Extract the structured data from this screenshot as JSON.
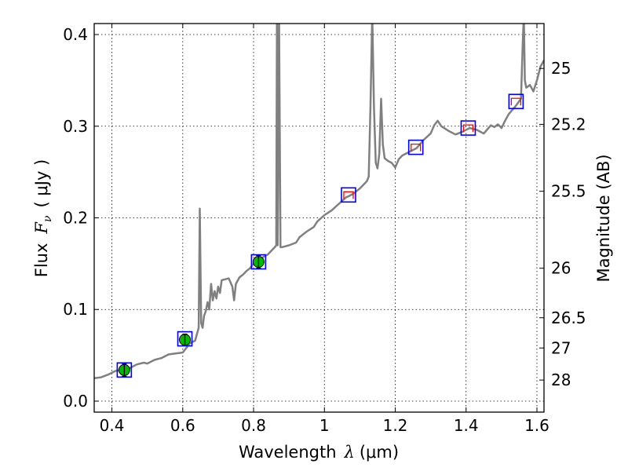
{
  "chart_data": {
    "type": "scatter",
    "xlabel": "Wavelength  λ (μm)",
    "xlabel_parts": {
      "text": "Wavelength",
      "symbol": "λ",
      "unit": "(μm)"
    },
    "ylabel": "Flux  Fν  ( μJy )",
    "ylabel_parts": {
      "text": "Flux",
      "symbol": "F",
      "subscript": "ν",
      "unit": "( μJy )"
    },
    "y2label": "Magnitude (AB)",
    "xlim": [
      0.35,
      1.62
    ],
    "ylim": [
      -0.012,
      0.412
    ],
    "xticks": [
      0.4,
      0.6,
      0.8,
      1.0,
      1.2,
      1.4,
      1.6
    ],
    "xtick_labels": [
      "0.4",
      "0.6",
      "0.8",
      "1",
      "1.2",
      "1.4",
      "1.6"
    ],
    "yticks": [
      0.0,
      0.1,
      0.2,
      0.3,
      0.4
    ],
    "ytick_labels": [
      "0.0",
      "0.1",
      "0.2",
      "0.3",
      "0.4"
    ],
    "grid": true,
    "mag_ticks": [
      {
        "label": "25",
        "flux": 0.363
      },
      {
        "label": "25.2",
        "flux": 0.302
      },
      {
        "label": "25.5",
        "flux": 0.229
      },
      {
        "label": "26",
        "flux": 0.145
      },
      {
        "label": "26.5",
        "flux": 0.091
      },
      {
        "label": "27",
        "flux": 0.058
      },
      {
        "label": "28",
        "flux": 0.023
      }
    ],
    "model_spectrum": {
      "name": "model",
      "color": "#808080",
      "points": [
        [
          0.35,
          0.025
        ],
        [
          0.37,
          0.026
        ],
        [
          0.39,
          0.029
        ],
        [
          0.41,
          0.033
        ],
        [
          0.43,
          0.034
        ],
        [
          0.45,
          0.036
        ],
        [
          0.47,
          0.04
        ],
        [
          0.49,
          0.042
        ],
        [
          0.5,
          0.041
        ],
        [
          0.52,
          0.045
        ],
        [
          0.54,
          0.047
        ],
        [
          0.56,
          0.051
        ],
        [
          0.58,
          0.052
        ],
        [
          0.6,
          0.053
        ],
        [
          0.61,
          0.058
        ],
        [
          0.62,
          0.063
        ],
        [
          0.635,
          0.066
        ],
        [
          0.64,
          0.073
        ],
        [
          0.645,
          0.08
        ],
        [
          0.648,
          0.21
        ],
        [
          0.652,
          0.085
        ],
        [
          0.656,
          0.08
        ],
        [
          0.66,
          0.093
        ],
        [
          0.665,
          0.098
        ],
        [
          0.67,
          0.108
        ],
        [
          0.675,
          0.1
        ],
        [
          0.68,
          0.128
        ],
        [
          0.685,
          0.11
        ],
        [
          0.69,
          0.12
        ],
        [
          0.695,
          0.112
        ],
        [
          0.7,
          0.125
        ],
        [
          0.705,
          0.118
        ],
        [
          0.71,
          0.132
        ],
        [
          0.73,
          0.134
        ],
        [
          0.74,
          0.125
        ],
        [
          0.745,
          0.11
        ],
        [
          0.75,
          0.128
        ],
        [
          0.76,
          0.135
        ],
        [
          0.77,
          0.138
        ],
        [
          0.78,
          0.142
        ],
        [
          0.79,
          0.145
        ],
        [
          0.8,
          0.15
        ],
        [
          0.81,
          0.152
        ],
        [
          0.82,
          0.155
        ],
        [
          0.83,
          0.158
        ],
        [
          0.84,
          0.16
        ],
        [
          0.85,
          0.164
        ],
        [
          0.86,
          0.168
        ],
        [
          0.864,
          0.17
        ],
        [
          0.866,
          0.42
        ],
        [
          0.868,
          0.17
        ],
        [
          0.872,
          0.42
        ],
        [
          0.876,
          0.168
        ],
        [
          0.88,
          0.168
        ],
        [
          0.9,
          0.17
        ],
        [
          0.92,
          0.173
        ],
        [
          0.93,
          0.179
        ],
        [
          0.95,
          0.185
        ],
        [
          0.97,
          0.19
        ],
        [
          0.98,
          0.196
        ],
        [
          1.0,
          0.203
        ],
        [
          1.02,
          0.208
        ],
        [
          1.04,
          0.215
        ],
        [
          1.06,
          0.222
        ],
        [
          1.07,
          0.224
        ],
        [
          1.08,
          0.226
        ],
        [
          1.1,
          0.232
        ],
        [
          1.12,
          0.24
        ],
        [
          1.125,
          0.245
        ],
        [
          1.13,
          0.32
        ],
        [
          1.135,
          0.43
        ],
        [
          1.14,
          0.32
        ],
        [
          1.145,
          0.26
        ],
        [
          1.15,
          0.254
        ],
        [
          1.155,
          0.27
        ],
        [
          1.16,
          0.33
        ],
        [
          1.165,
          0.28
        ],
        [
          1.17,
          0.265
        ],
        [
          1.18,
          0.262
        ],
        [
          1.19,
          0.26
        ],
        [
          1.2,
          0.255
        ],
        [
          1.21,
          0.264
        ],
        [
          1.22,
          0.268
        ],
        [
          1.24,
          0.272
        ],
        [
          1.26,
          0.276
        ],
        [
          1.28,
          0.285
        ],
        [
          1.3,
          0.292
        ],
        [
          1.31,
          0.301
        ],
        [
          1.32,
          0.306
        ],
        [
          1.33,
          0.3
        ],
        [
          1.35,
          0.295
        ],
        [
          1.37,
          0.291
        ],
        [
          1.39,
          0.294
        ],
        [
          1.41,
          0.298
        ],
        [
          1.43,
          0.296
        ],
        [
          1.45,
          0.292
        ],
        [
          1.47,
          0.301
        ],
        [
          1.48,
          0.299
        ],
        [
          1.49,
          0.302
        ],
        [
          1.5,
          0.298
        ],
        [
          1.51,
          0.306
        ],
        [
          1.52,
          0.313
        ],
        [
          1.54,
          0.322
        ],
        [
          1.555,
          0.33
        ],
        [
          1.56,
          0.39
        ],
        [
          1.563,
          0.44
        ],
        [
          1.566,
          0.35
        ],
        [
          1.57,
          0.342
        ],
        [
          1.58,
          0.345
        ],
        [
          1.59,
          0.338
        ],
        [
          1.6,
          0.35
        ],
        [
          1.61,
          0.365
        ],
        [
          1.62,
          0.372
        ]
      ]
    },
    "observed_photometry": {
      "name": "observed",
      "marker_color": "#00bb00",
      "points": [
        {
          "x": 0.435,
          "y": 0.034,
          "err": 0.007
        },
        {
          "x": 0.606,
          "y": 0.067,
          "err": 0.006
        },
        {
          "x": 0.814,
          "y": 0.152,
          "err": 0.007
        }
      ]
    },
    "model_photometry": {
      "name": "model_bands",
      "box_color": "#0000ff",
      "points": [
        {
          "x": 0.435,
          "y": 0.034
        },
        {
          "x": 0.606,
          "y": 0.068
        },
        {
          "x": 0.814,
          "y": 0.152
        },
        {
          "x": 1.068,
          "y": 0.225
        },
        {
          "x": 1.258,
          "y": 0.277
        },
        {
          "x": 1.406,
          "y": 0.298
        },
        {
          "x": 1.541,
          "y": 0.327
        }
      ]
    },
    "upper_limits": {
      "name": "red_brackets",
      "color": "#ff0000",
      "points": [
        {
          "x": 1.068,
          "y": 0.225
        },
        {
          "x": 1.258,
          "y": 0.277
        },
        {
          "x": 1.406,
          "y": 0.298
        },
        {
          "x": 1.541,
          "y": 0.327
        }
      ]
    }
  }
}
